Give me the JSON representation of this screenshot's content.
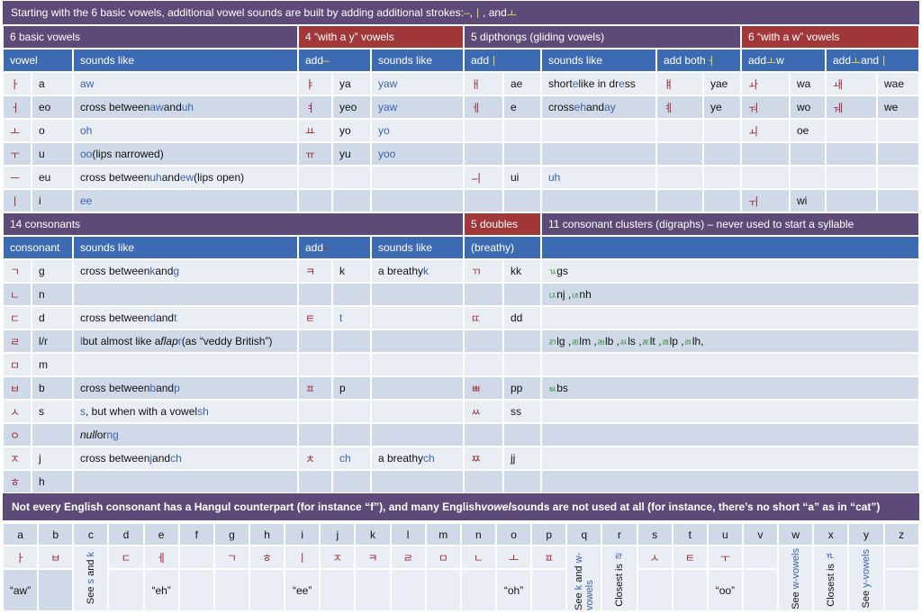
{
  "title": [
    {
      "t": "Starting with the 6 basic vowels, additional vowel sounds are built by adding additional strokes: "
    },
    {
      "t": "–",
      "s": "y"
    },
    {
      "t": " , "
    },
    {
      "t": "ㅣ",
      "s": "y"
    },
    {
      "t": " , and "
    },
    {
      "t": "ㅗ",
      "s": "y"
    }
  ],
  "vowels": {
    "sections": [
      "6 basic vowels",
      "4 “with a y” vowels",
      "5 dipthongs (gliding vowels)",
      "6 “with a w” vowels"
    ],
    "headers": [
      "vowel",
      "sounds like",
      [
        {
          "t": "add "
        },
        {
          "t": "–",
          "s": "y"
        }
      ],
      "sounds like",
      [
        {
          "t": "add "
        },
        {
          "t": "ㅣ",
          "s": "y"
        }
      ],
      "sounds like",
      [
        {
          "t": "add both "
        },
        {
          "t": "ㅓ",
          "s": "y"
        }
      ],
      [
        {
          "t": "add "
        },
        {
          "t": "ㅗ",
          "s": "y"
        },
        {
          "t": " w"
        }
      ],
      [
        {
          "t": "add "
        },
        {
          "t": "ㅗ",
          "s": "y"
        },
        {
          "t": " and "
        },
        {
          "t": "ㅣ",
          "s": "y"
        }
      ]
    ],
    "rows": [
      [
        "ㅏ",
        "a",
        [
          {
            "t": "aw",
            "s": "b"
          }
        ],
        "ㅑ",
        "ya",
        [
          {
            "t": "yaw",
            "s": "b"
          }
        ],
        "ㅐ",
        "ae",
        [
          {
            "t": "short "
          },
          {
            "t": "e",
            "s": "b"
          },
          {
            "t": " like in dr"
          },
          {
            "t": "e",
            "s": "b"
          },
          {
            "t": "ss"
          }
        ],
        "ㅒ",
        "yae",
        "ㅘ",
        "wa",
        "ㅙ",
        "wae"
      ],
      [
        "ㅓ",
        "eo",
        [
          {
            "t": "cross between "
          },
          {
            "t": "aw",
            "s": "b"
          },
          {
            "t": " and "
          },
          {
            "t": "uh",
            "s": "b"
          }
        ],
        "ㅕ",
        "yeo",
        [
          {
            "t": "yaw",
            "s": "b"
          }
        ],
        "ㅔ",
        "e",
        [
          {
            "t": "cross "
          },
          {
            "t": "eh",
            "s": "b"
          },
          {
            "t": " and "
          },
          {
            "t": "ay",
            "s": "b"
          }
        ],
        "ㅖ",
        "ye",
        "ㅝ",
        "wo",
        "ㅞ",
        "we"
      ],
      [
        "ㅗ",
        "o",
        [
          {
            "t": "oh",
            "s": "b"
          }
        ],
        "ㅛ",
        "yo",
        [
          {
            "t": "yo",
            "s": "b"
          }
        ],
        "",
        "",
        "",
        "",
        "",
        "ㅚ",
        "oe",
        "",
        ""
      ],
      [
        "ㅜ",
        "u",
        [
          {
            "t": "oo",
            "s": "b"
          },
          {
            "t": " (lips narrowed)"
          }
        ],
        "ㅠ",
        "yu",
        [
          {
            "t": "yoo",
            "s": "b"
          }
        ],
        "",
        "",
        "",
        "",
        "",
        "",
        "",
        "",
        ""
      ],
      [
        "ㅡ",
        "eu",
        [
          {
            "t": "cross between "
          },
          {
            "t": "uh",
            "s": "b"
          },
          {
            "t": " and "
          },
          {
            "t": "ew",
            "s": "b"
          },
          {
            "t": " (lips open)"
          }
        ],
        "",
        "",
        "",
        "ㅢ",
        "ui",
        [
          {
            "t": "uh",
            "s": "b"
          }
        ],
        "",
        "",
        "",
        "",
        "",
        ""
      ],
      [
        "ㅣ",
        "i",
        [
          {
            "t": "ee",
            "s": "b"
          }
        ],
        "",
        "",
        "",
        "",
        "",
        "",
        "",
        "",
        "ㅟ",
        "wi",
        "",
        ""
      ]
    ]
  },
  "consonants": {
    "sections": [
      "14 consonants",
      "5 doubles",
      "11 consonant clusters (digraphs) – never used to start a syllable"
    ],
    "headers": [
      "consonant",
      "sounds like",
      [
        {
          "t": "add "
        },
        {
          "t": "–",
          "s": "dr"
        }
      ],
      "sounds like",
      "(breathy)",
      ""
    ],
    "rows": [
      [
        "ㄱ",
        "g",
        [
          {
            "t": "cross between "
          },
          {
            "t": "k",
            "s": "b"
          },
          {
            "t": " and "
          },
          {
            "t": "g",
            "s": "b"
          }
        ],
        "ㅋ",
        "k",
        [
          {
            "t": "a breathy "
          },
          {
            "t": "k",
            "s": "b"
          }
        ],
        "ㄲ",
        "kk",
        [
          {
            "t": "ㄳ",
            "s": "gr"
          },
          {
            "t": " gs"
          }
        ]
      ],
      [
        "ㄴ",
        "n",
        "",
        "",
        "",
        "",
        "",
        "",
        [
          {
            "t": "ㄵ",
            "s": "gr"
          },
          {
            "t": " nj , "
          },
          {
            "t": "ㄶ",
            "s": "gr"
          },
          {
            "t": " nh"
          }
        ]
      ],
      [
        "ㄷ",
        "d",
        [
          {
            "t": "cross between "
          },
          {
            "t": "d",
            "s": "b"
          },
          {
            "t": " and "
          },
          {
            "t": "t",
            "s": "b"
          }
        ],
        "ㅌ",
        [
          {
            "t": "t",
            "s": "b"
          }
        ],
        "",
        "ㄸ",
        "dd",
        ""
      ],
      [
        "ㄹ",
        "l/r",
        [
          {
            "t": "l",
            "s": "b"
          },
          {
            "t": " but almost like a "
          },
          {
            "t": "flap",
            "s": "i"
          },
          {
            "t": " "
          },
          {
            "t": "r",
            "s": "b"
          },
          {
            "t": " (as “veddy British”)"
          }
        ],
        "",
        "",
        "",
        "",
        "",
        [
          {
            "t": "ㄺ",
            "s": "gr"
          },
          {
            "t": " lg , "
          },
          {
            "t": "ㄻ",
            "s": "gr"
          },
          {
            "t": " lm , "
          },
          {
            "t": "ㄼ",
            "s": "gr"
          },
          {
            "t": " lb , "
          },
          {
            "t": "ㄽ",
            "s": "gr"
          },
          {
            "t": " ls , "
          },
          {
            "t": "ㄾ",
            "s": "gr"
          },
          {
            "t": " lt , "
          },
          {
            "t": "ㄿ",
            "s": "gr"
          },
          {
            "t": " lp , "
          },
          {
            "t": "ㅀ",
            "s": "gr"
          },
          {
            "t": " lh,"
          }
        ]
      ],
      [
        "ㅁ",
        "m",
        "",
        "",
        "",
        "",
        "",
        "",
        ""
      ],
      [
        "ㅂ",
        "b",
        [
          {
            "t": "cross between "
          },
          {
            "t": "b",
            "s": "b"
          },
          {
            "t": " and "
          },
          {
            "t": "p",
            "s": "b"
          }
        ],
        "ㅍ",
        "p",
        "",
        "ㅃ",
        "pp",
        [
          {
            "t": "ㅄ",
            "s": "gr"
          },
          {
            "t": " bs"
          }
        ]
      ],
      [
        "ㅅ",
        "s",
        [
          {
            "t": "s",
            "s": "b"
          },
          {
            "t": ", but when with a vowel "
          },
          {
            "t": "sh",
            "s": "b"
          }
        ],
        "",
        "",
        "",
        "ㅆ",
        "ss",
        ""
      ],
      [
        "ㅇ",
        "",
        [
          {
            "t": "null",
            "s": "i"
          },
          {
            "t": " or "
          },
          {
            "t": "ng",
            "s": "b"
          }
        ],
        "",
        "",
        "",
        "",
        "",
        ""
      ],
      [
        "ㅈ",
        "j",
        [
          {
            "t": "cross between "
          },
          {
            "t": "j",
            "s": "b"
          },
          {
            "t": " and "
          },
          {
            "t": "ch",
            "s": "b"
          }
        ],
        "ㅊ",
        [
          {
            "t": "ch",
            "s": "b"
          }
        ],
        [
          {
            "t": "a breathy "
          },
          {
            "t": "ch",
            "s": "b"
          }
        ],
        "ㅉ",
        "jj",
        ""
      ],
      [
        "ㅎ",
        "h",
        "",
        "",
        "",
        "",
        "",
        "",
        ""
      ]
    ]
  },
  "banner": [
    {
      "t": "Not every English consonant has a Hangul counterpart (for instance “f”), and many English "
    },
    {
      "t": "vowel",
      "s": "i"
    },
    {
      "t": " sounds are not used at all (for instance, there’s no short “a” as in “cat”)"
    }
  ],
  "alphabet": [
    {
      "letter": "a",
      "glyph": "ㅏ",
      "note": "“aw”",
      "dark": true
    },
    {
      "letter": "b",
      "glyph": "ㅂ",
      "note": "",
      "dark": true
    },
    {
      "letter": "c",
      "vertical": [
        {
          "t": "See "
        },
        {
          "t": "s",
          "s": "b"
        },
        {
          "t": " and "
        },
        {
          "t": "k",
          "s": "b"
        }
      ]
    },
    {
      "letter": "d",
      "glyph": "ㄷ",
      "note": ""
    },
    {
      "letter": "e",
      "glyph": "ㅔ",
      "note": "“eh”"
    },
    {
      "letter": "f",
      "glyph": "",
      "note": ""
    },
    {
      "letter": "g",
      "glyph": "ㄱ",
      "note": ""
    },
    {
      "letter": "h",
      "glyph": "ㅎ",
      "note": ""
    },
    {
      "letter": "i",
      "glyph": "ㅣ",
      "note": "“ee”"
    },
    {
      "letter": "j",
      "glyph": "ㅈ",
      "note": ""
    },
    {
      "letter": "k",
      "glyph": "ㅋ",
      "note": ""
    },
    {
      "letter": "l",
      "glyph": "ㄹ",
      "note": ""
    },
    {
      "letter": "m",
      "glyph": "ㅁ",
      "note": ""
    },
    {
      "letter": "n",
      "glyph": "ㄴ",
      "note": ""
    },
    {
      "letter": "o",
      "glyph": "ㅗ",
      "note": "“oh”"
    },
    {
      "letter": "p",
      "glyph": "ㅍ",
      "note": ""
    },
    {
      "letter": "q",
      "vertical": [
        {
          "t": "See "
        },
        {
          "t": "k",
          "s": "b"
        },
        {
          "t": " and "
        },
        {
          "t": "w-vowels",
          "s": "b"
        }
      ]
    },
    {
      "letter": "r",
      "vertical": [
        {
          "t": "Closest is "
        },
        {
          "t": "ㄹ",
          "s": "b"
        }
      ]
    },
    {
      "letter": "s",
      "glyph": "ㅅ",
      "note": ""
    },
    {
      "letter": "t",
      "glyph": "ㅌ",
      "note": ""
    },
    {
      "letter": "u",
      "glyph": "ㅜ",
      "note": "“oo”"
    },
    {
      "letter": "v",
      "glyph": "",
      "note": ""
    },
    {
      "letter": "w",
      "vertical": [
        {
          "t": "See "
        },
        {
          "t": "w-vowels",
          "s": "b"
        }
      ]
    },
    {
      "letter": "x",
      "vertical": [
        {
          "t": "Closest is "
        },
        {
          "t": "ㄳ",
          "s": "b"
        }
      ]
    },
    {
      "letter": "y",
      "vertical": [
        {
          "t": "See "
        },
        {
          "t": "y-vowels",
          "s": "b"
        }
      ]
    },
    {
      "letter": "z",
      "glyph": "",
      "note": ""
    }
  ]
}
